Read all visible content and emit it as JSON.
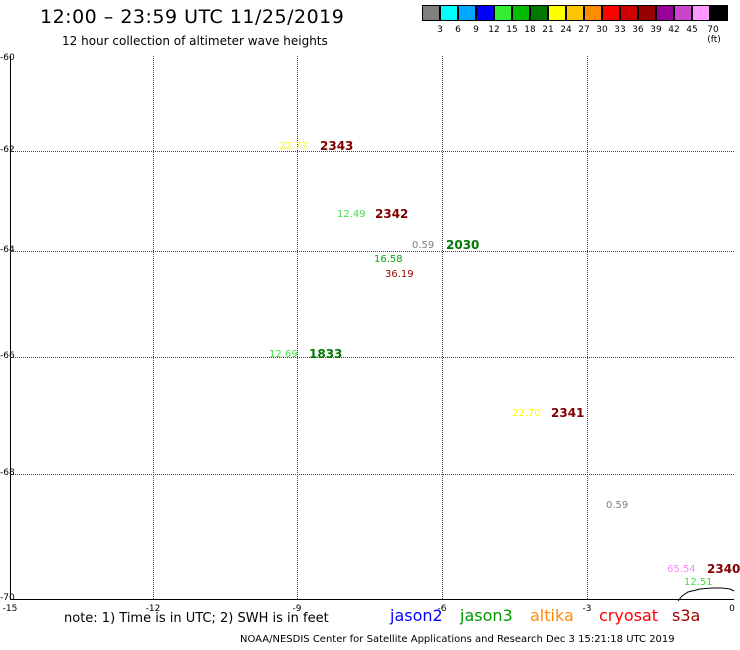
{
  "title": "12:00 – 23:59 UTC 11/25/2019",
  "subtitle": "12 hour collection of altimeter wave heights",
  "legend": {
    "ticks": [
      "3",
      "6",
      "9",
      "12",
      "15",
      "18",
      "21",
      "24",
      "27",
      "30",
      "33",
      "36",
      "39",
      "42",
      "45",
      "70 (ft)"
    ],
    "colors": [
      "#808080",
      "#00ffff",
      "#00a6ff",
      "#0000ff",
      "#33ee33",
      "#00bb00",
      "#007700",
      "#ffff00",
      "#ffc400",
      "#ff8c00",
      "#ff0000",
      "#cc0000",
      "#990000",
      "#990099",
      "#cc44cc",
      "#ff99ff",
      "#000000"
    ]
  },
  "axes": {
    "y_labels": [
      "-60",
      "-62",
      "-64",
      "-66",
      "-68",
      "-70"
    ],
    "x_labels": [
      "-15",
      "-12",
      "-9",
      "-6",
      "-3",
      "0"
    ]
  },
  "points": [
    {
      "text": "22.77",
      "color": "#ffff00"
    },
    {
      "text": "2343",
      "color": "#800000"
    },
    {
      "text": "12.49",
      "color": "#44dd44"
    },
    {
      "text": "2342",
      "color": "#800000"
    },
    {
      "text": "0.59",
      "color": "#808080"
    },
    {
      "text": "2030",
      "color": "#007700"
    },
    {
      "text": "16.58",
      "color": "#00aa00"
    },
    {
      "text": "36.19",
      "color": "#990000"
    },
    {
      "text": "12.69",
      "color": "#44dd44"
    },
    {
      "text": "1833",
      "color": "#007700"
    },
    {
      "text": "22.70",
      "color": "#ffff00"
    },
    {
      "text": "2341",
      "color": "#800000"
    },
    {
      "text": "0.59",
      "color": "#808080"
    },
    {
      "text": "65.54",
      "color": "#ff88ff"
    },
    {
      "text": "2340",
      "color": "#800000"
    },
    {
      "text": "12.51",
      "color": "#44dd44"
    }
  ],
  "note": "note: 1) Time is in UTC; 2) SWH is in feet",
  "satellites": [
    {
      "name": "jason2",
      "color": "#0000ff"
    },
    {
      "name": "jason3",
      "color": "#009900"
    },
    {
      "name": "altika",
      "color": "#ff8c00"
    },
    {
      "name": "cryosat",
      "color": "#ff0000"
    },
    {
      "name": "s3a",
      "color": "#990000"
    }
  ],
  "credit": "NOAA/NESDIS Center for Satellite Applications and Research    Dec  3 15:21:18 UTC 2019"
}
